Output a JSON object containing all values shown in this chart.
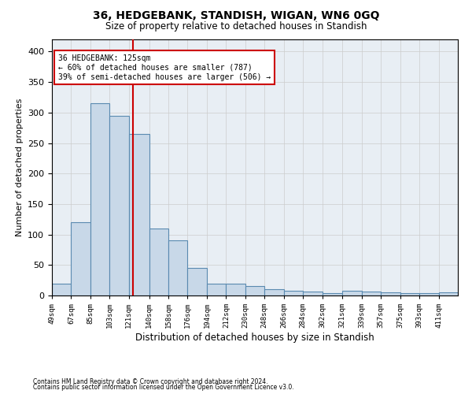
{
  "title": "36, HEDGEBANK, STANDISH, WIGAN, WN6 0GQ",
  "subtitle": "Size of property relative to detached houses in Standish",
  "xlabel": "Distribution of detached houses by size in Standish",
  "ylabel": "Number of detached properties",
  "bar_edges": [
    49,
    67,
    85,
    103,
    121,
    140,
    158,
    176,
    194,
    212,
    230,
    248,
    266,
    284,
    302,
    321,
    339,
    357,
    375,
    393,
    411
  ],
  "bar_values": [
    20,
    120,
    315,
    295,
    265,
    110,
    90,
    45,
    20,
    20,
    15,
    10,
    8,
    6,
    4,
    8,
    6,
    5,
    4,
    4,
    5
  ],
  "bar_color": "#c8d8e8",
  "bar_edgecolor": "#5a8ab0",
  "bar_linewidth": 0.8,
  "red_line_x": 125,
  "red_line_color": "#cc0000",
  "annotation_text": "36 HEDGEBANK: 125sqm\n← 60% of detached houses are smaller (787)\n39% of semi-detached houses are larger (506) →",
  "annotation_box_color": "#ffffff",
  "annotation_box_edgecolor": "#cc0000",
  "tick_labels": [
    "49sqm",
    "67sqm",
    "85sqm",
    "103sqm",
    "121sqm",
    "140sqm",
    "158sqm",
    "176sqm",
    "194sqm",
    "212sqm",
    "230sqm",
    "248sqm",
    "266sqm",
    "284sqm",
    "302sqm",
    "321sqm",
    "339sqm",
    "357sqm",
    "375sqm",
    "393sqm",
    "411sqm"
  ],
  "ylim": [
    0,
    420
  ],
  "yticks": [
    0,
    50,
    100,
    150,
    200,
    250,
    300,
    350,
    400
  ],
  "background_color": "#ffffff",
  "grid_color": "#cccccc",
  "footer_line1": "Contains HM Land Registry data © Crown copyright and database right 2024.",
  "footer_line2": "Contains public sector information licensed under the Open Government Licence v3.0."
}
